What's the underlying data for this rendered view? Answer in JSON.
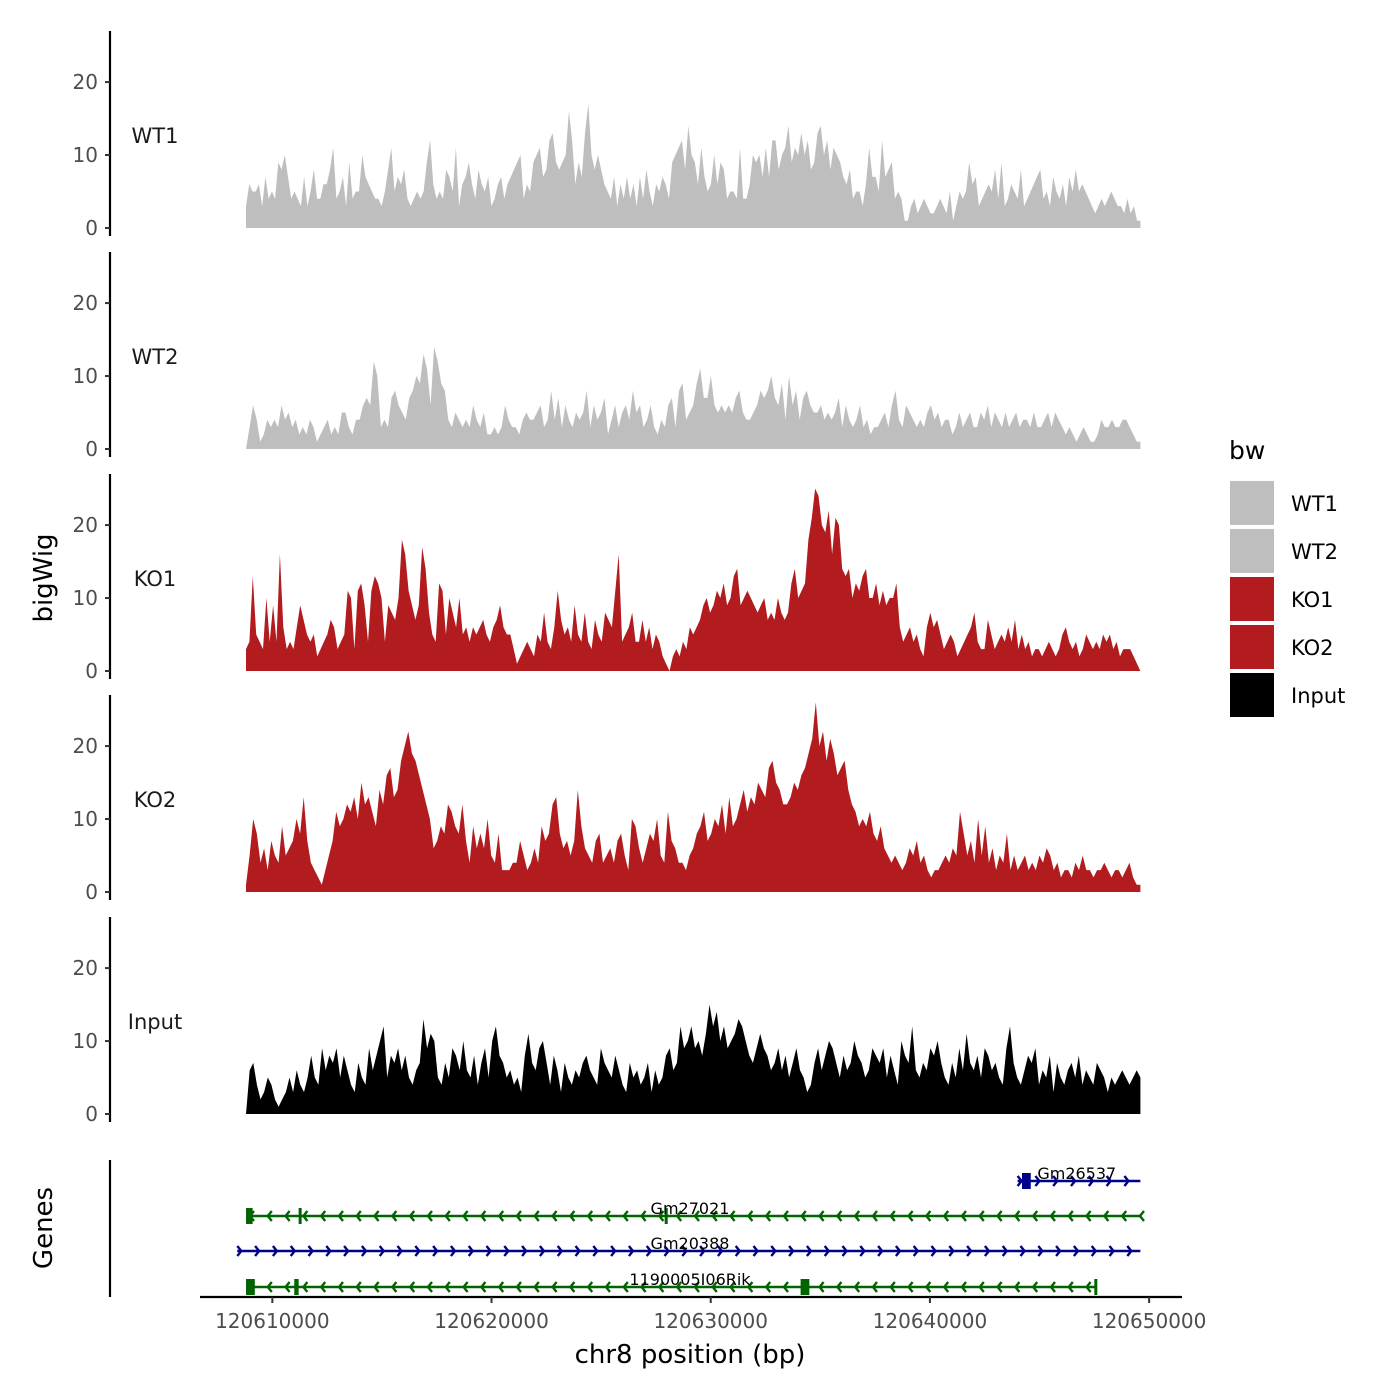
{
  "chart_data": {
    "type": "area",
    "y_axis_title": "bigWig",
    "x_axis_title": "chr8 position (bp)",
    "genes_axis_title": "Genes",
    "y_range": [
      0,
      27
    ],
    "y_ticks": [
      0,
      10,
      20
    ],
    "y_tick_labels": [
      "0",
      "10",
      "20"
    ],
    "x_range": [
      120606700,
      120651500
    ],
    "x_ticks": [
      120610000,
      120620000,
      120630000,
      120640000,
      120650000
    ],
    "x_tick_labels": [
      "120610000",
      "120620000",
      "120630000",
      "120640000",
      "120650000"
    ],
    "data_start": 120608800,
    "data_end": 120649600,
    "grid": false,
    "legend": {
      "title": "bw",
      "position": "right",
      "entries": [
        {
          "label": "WT1",
          "color": "#bebebe"
        },
        {
          "label": "WT2",
          "color": "#bebebe"
        },
        {
          "label": "KO1",
          "color": "#b21c1f"
        },
        {
          "label": "KO2",
          "color": "#b21c1f"
        },
        {
          "label": "Input",
          "color": "#000000"
        }
      ]
    },
    "tracks": [
      {
        "name": "WT1",
        "color": "#bebebe",
        "values": [
          3,
          6,
          5,
          5,
          6,
          3,
          7,
          4,
          5,
          4,
          9,
          8,
          10,
          7,
          4,
          5,
          4,
          3,
          7,
          3,
          5,
          8,
          4,
          4,
          6,
          6,
          8,
          11,
          4,
          5,
          7,
          3,
          9,
          4,
          5,
          5,
          10,
          7,
          6,
          5,
          4,
          4,
          3,
          5,
          8,
          11,
          5,
          7,
          6,
          8,
          4,
          3,
          4,
          5,
          4,
          5,
          9,
          12,
          6,
          4,
          5,
          4,
          8,
          7,
          5,
          11,
          3,
          6,
          7,
          9,
          6,
          4,
          8,
          6,
          5,
          7,
          3,
          4,
          6,
          7,
          4,
          6,
          7,
          8,
          9,
          10,
          4,
          6,
          5,
          9,
          10,
          11,
          7,
          8,
          12,
          13,
          9,
          8,
          9,
          10,
          16,
          12,
          6,
          9,
          7,
          13,
          17,
          10,
          8,
          10,
          8,
          6,
          5,
          4,
          7,
          3,
          6,
          4,
          7,
          4,
          6,
          3,
          7,
          4,
          8,
          5,
          3,
          6,
          5,
          7,
          6,
          4,
          9,
          10,
          11,
          12,
          8,
          14,
          10,
          9,
          6,
          11,
          7,
          5,
          6,
          10,
          6,
          9,
          8,
          4,
          5,
          5,
          4,
          11,
          4,
          4,
          6,
          10,
          9,
          10,
          7,
          11,
          7,
          12,
          12,
          8,
          10,
          11,
          14,
          9,
          11,
          10,
          13,
          10,
          12,
          8,
          9,
          13,
          14,
          10,
          12,
          8,
          11,
          10,
          9,
          7,
          6,
          8,
          4,
          5,
          5,
          3,
          6,
          11,
          7,
          7,
          5,
          12,
          7,
          8,
          9,
          4,
          5,
          4,
          1,
          1,
          3,
          4,
          2,
          3,
          4,
          3,
          2,
          2,
          3,
          4,
          3,
          2,
          5,
          1,
          3,
          5,
          4,
          5,
          9,
          6,
          7,
          3,
          4,
          5,
          6,
          5,
          8,
          4,
          9,
          3,
          4,
          6,
          5,
          4,
          8,
          3,
          4,
          5,
          6,
          7,
          8,
          4,
          5,
          3,
          7,
          5,
          4,
          6,
          3,
          7,
          5,
          8,
          5,
          6,
          5,
          4,
          3,
          2,
          3,
          4,
          3,
          4,
          5,
          4,
          3,
          3,
          2,
          4,
          2,
          3,
          1,
          1
        ]
      },
      {
        "name": "WT2",
        "color": "#bebebe",
        "values": [
          0,
          3,
          6,
          4,
          1,
          2,
          4,
          3,
          4,
          3,
          6,
          4,
          5,
          3,
          4,
          2,
          3,
          2,
          4,
          3,
          1,
          2,
          3,
          4,
          2,
          3,
          2,
          5,
          5,
          3,
          2,
          4,
          4,
          6,
          7,
          6,
          12,
          10,
          3,
          4,
          3,
          7,
          8,
          6,
          5,
          4,
          7,
          8,
          10,
          9,
          13,
          11,
          6,
          14,
          12,
          9,
          8,
          4,
          3,
          5,
          4,
          3,
          4,
          3,
          6,
          4,
          3,
          5,
          2,
          2,
          3,
          2,
          3,
          6,
          4,
          3,
          3,
          2,
          4,
          5,
          4,
          4,
          5,
          6,
          3,
          4,
          8,
          4,
          7,
          3,
          6,
          4,
          3,
          5,
          4,
          5,
          8,
          3,
          6,
          4,
          5,
          7,
          2,
          4,
          6,
          3,
          5,
          6,
          4,
          8,
          5,
          6,
          3,
          4,
          6,
          3,
          2,
          4,
          3,
          6,
          7,
          3,
          8,
          9,
          4,
          5,
          6,
          9,
          11,
          7,
          7,
          10,
          6,
          5,
          6,
          5,
          6,
          5,
          7,
          8,
          5,
          4,
          4,
          5,
          6,
          8,
          7,
          8,
          10,
          7,
          6,
          9,
          4,
          10,
          6,
          8,
          4,
          7,
          8,
          6,
          5,
          5,
          6,
          4,
          5,
          4,
          5,
          7,
          3,
          6,
          4,
          3,
          4,
          6,
          3,
          4,
          2,
          3,
          3,
          4,
          5,
          3,
          6,
          8,
          4,
          3,
          6,
          5,
          4,
          3,
          4,
          3,
          5,
          6,
          4,
          5,
          3,
          4,
          4,
          2,
          3,
          5,
          3,
          4,
          5,
          3,
          3,
          5,
          4,
          6,
          3,
          5,
          4,
          3,
          5,
          3,
          4,
          5,
          3,
          4,
          4,
          3,
          5,
          3,
          3,
          4,
          5,
          3,
          5,
          4,
          3,
          2,
          3,
          2,
          1,
          2,
          3,
          2,
          1,
          1,
          2,
          4,
          3,
          3,
          4,
          3,
          3,
          4,
          4,
          3,
          2,
          1,
          1
        ]
      },
      {
        "name": "KO1",
        "color": "#b21c1f",
        "values": [
          3,
          4,
          13,
          5,
          4,
          3,
          10,
          4,
          9,
          4,
          16,
          6,
          3,
          4,
          3,
          6,
          9,
          7,
          5,
          4,
          5,
          2,
          3,
          4,
          5,
          7,
          6,
          3,
          4,
          5,
          11,
          10,
          3,
          11,
          12,
          9,
          4,
          11,
          13,
          12,
          10,
          4,
          9,
          8,
          7,
          10,
          18,
          16,
          11,
          9,
          7,
          9,
          17,
          14,
          8,
          5,
          4,
          12,
          11,
          5,
          10,
          8,
          6,
          10,
          5,
          6,
          4,
          6,
          5,
          6,
          7,
          5,
          4,
          6,
          7,
          9,
          6,
          5,
          5,
          3,
          1,
          2,
          3,
          4,
          3,
          2,
          5,
          4,
          8,
          4,
          3,
          6,
          11,
          7,
          5,
          6,
          4,
          9,
          5,
          4,
          8,
          4,
          3,
          7,
          5,
          4,
          8,
          7,
          6,
          11,
          16,
          4,
          5,
          6,
          8,
          4,
          4,
          7,
          4,
          6,
          3,
          5,
          4,
          2,
          1,
          0,
          2,
          3,
          2,
          4,
          3,
          6,
          5,
          6,
          7,
          9,
          10,
          8,
          9,
          11,
          10,
          12,
          9,
          10,
          13,
          14,
          9,
          10,
          11,
          10,
          9,
          8,
          9,
          10,
          7,
          8,
          7,
          10,
          8,
          7,
          8,
          12,
          14,
          10,
          11,
          12,
          18,
          21,
          25,
          24,
          20,
          19,
          22,
          16,
          21,
          20,
          14,
          13,
          14,
          10,
          12,
          11,
          13,
          14,
          10,
          10,
          12,
          9,
          11,
          9,
          10,
          10,
          12,
          6,
          4,
          5,
          6,
          4,
          5,
          3,
          2,
          6,
          8,
          6,
          7,
          5,
          3,
          4,
          5,
          4,
          2,
          3,
          4,
          5,
          6,
          8,
          4,
          3,
          3,
          7,
          5,
          3,
          4,
          5,
          4,
          6,
          4,
          7,
          3,
          5,
          3,
          4,
          2,
          3,
          3,
          2,
          3,
          4,
          3,
          2,
          3,
          5,
          6,
          4,
          3,
          4,
          2,
          3,
          5,
          4,
          3,
          4,
          3,
          5,
          4,
          5,
          3,
          4,
          2,
          3,
          3,
          3,
          2,
          1,
          0
        ]
      },
      {
        "name": "KO2",
        "color": "#b21c1f",
        "values": [
          1,
          5,
          10,
          8,
          4,
          6,
          3,
          7,
          5,
          4,
          9,
          5,
          6,
          7,
          10,
          8,
          13,
          7,
          4,
          3,
          2,
          1,
          3,
          5,
          7,
          11,
          9,
          10,
          12,
          11,
          13,
          10,
          15,
          12,
          13,
          11,
          9,
          14,
          12,
          16,
          17,
          13,
          14,
          18,
          20,
          22,
          19,
          18,
          16,
          14,
          12,
          10,
          6,
          7,
          9,
          8,
          12,
          11,
          9,
          8,
          12,
          7,
          4,
          9,
          6,
          8,
          6,
          10,
          5,
          4,
          8,
          3,
          3,
          3,
          4,
          4,
          7,
          5,
          3,
          4,
          6,
          4,
          9,
          7,
          8,
          12,
          13,
          8,
          6,
          7,
          5,
          7,
          14,
          9,
          6,
          5,
          4,
          7,
          8,
          4,
          5,
          6,
          4,
          7,
          8,
          5,
          3,
          10,
          9,
          6,
          4,
          6,
          8,
          7,
          10,
          5,
          4,
          11,
          7,
          6,
          4,
          4,
          3,
          5,
          6,
          8,
          9,
          11,
          7,
          8,
          10,
          9,
          12,
          8,
          13,
          9,
          10,
          12,
          14,
          11,
          13,
          12,
          15,
          14,
          13,
          17,
          18,
          15,
          14,
          12,
          12,
          13,
          15,
          14,
          16,
          17,
          19,
          21,
          26,
          20,
          22,
          18,
          21,
          19,
          16,
          17,
          18,
          14,
          12,
          11,
          9,
          10,
          9,
          11,
          8,
          7,
          9,
          6,
          5,
          4,
          5,
          4,
          3,
          4,
          6,
          5,
          7,
          4,
          5,
          3,
          2,
          3,
          3,
          4,
          5,
          4,
          6,
          5,
          11,
          8,
          5,
          7,
          4,
          10,
          5,
          9,
          4,
          6,
          3,
          5,
          4,
          8,
          3,
          5,
          3,
          4,
          5,
          3,
          4,
          3,
          5,
          4,
          6,
          5,
          3,
          4,
          2,
          3,
          3,
          2,
          4,
          3,
          5,
          3,
          3,
          2,
          3,
          3,
          4,
          3,
          2,
          3,
          3,
          2,
          3,
          4,
          2,
          1,
          1
        ]
      },
      {
        "name": "Input",
        "color": "#000000",
        "values": [
          0,
          6,
          7,
          4,
          2,
          3,
          5,
          4,
          2,
          1,
          2,
          3,
          5,
          3,
          6,
          4,
          3,
          5,
          8,
          5,
          4,
          9,
          6,
          8,
          7,
          9,
          5,
          8,
          6,
          4,
          3,
          7,
          5,
          4,
          9,
          6,
          8,
          10,
          12,
          5,
          8,
          7,
          9,
          6,
          8,
          5,
          4,
          6,
          7,
          13,
          9,
          11,
          10,
          5,
          4,
          7,
          5,
          9,
          8,
          6,
          10,
          6,
          5,
          8,
          4,
          7,
          9,
          5,
          10,
          12,
          8,
          7,
          5,
          6,
          4,
          5,
          3,
          8,
          11,
          7,
          6,
          9,
          10,
          7,
          4,
          8,
          6,
          3,
          7,
          5,
          4,
          6,
          5,
          7,
          8,
          6,
          5,
          4,
          9,
          7,
          6,
          5,
          8,
          6,
          4,
          3,
          7,
          5,
          6,
          4,
          5,
          7,
          3,
          6,
          4,
          5,
          8,
          9,
          6,
          7,
          12,
          9,
          10,
          12,
          9,
          10,
          8,
          11,
          15,
          12,
          14,
          10,
          12,
          9,
          10,
          11,
          13,
          12,
          10,
          8,
          7,
          9,
          11,
          9,
          8,
          6,
          7,
          9,
          6,
          8,
          5,
          7,
          9,
          6,
          5,
          3,
          4,
          7,
          9,
          6,
          8,
          10,
          9,
          7,
          5,
          8,
          6,
          7,
          10,
          8,
          7,
          5,
          6,
          9,
          8,
          7,
          9,
          5,
          8,
          6,
          4,
          10,
          8,
          7,
          12,
          6,
          5,
          7,
          6,
          9,
          8,
          10,
          7,
          5,
          4,
          7,
          5,
          9,
          6,
          11,
          7,
          6,
          8,
          5,
          9,
          8,
          6,
          7,
          5,
          4,
          9,
          12,
          7,
          5,
          4,
          6,
          8,
          7,
          9,
          4,
          6,
          5,
          8,
          3,
          7,
          5,
          4,
          6,
          7,
          5,
          8,
          4,
          6,
          5,
          4,
          7,
          6,
          5,
          3,
          5,
          4,
          5,
          6,
          5,
          4,
          5,
          6,
          5
        ]
      }
    ],
    "genes": [
      {
        "name": "Gm26537",
        "strand": "+",
        "color": "#00008b",
        "start": 120644000,
        "end": 120649600,
        "exons": [
          [
            120644200,
            120644600
          ]
        ]
      },
      {
        "name": "Gm27021",
        "strand": "-",
        "color": "#006400",
        "start": 120608800,
        "end": 120649600,
        "exons": [
          [
            120608800,
            120609100
          ],
          [
            120611200,
            120611300
          ],
          [
            120627900,
            120628000
          ]
        ]
      },
      {
        "name": "Gm20388",
        "strand": "+",
        "color": "#00008b",
        "start": 120608400,
        "end": 120649600,
        "exons": []
      },
      {
        "name": "1190005I06Rik",
        "strand": "-",
        "color": "#006400",
        "start": 120608800,
        "end": 120647600,
        "exons": [
          [
            120608800,
            120609200
          ],
          [
            120611000,
            120611200
          ],
          [
            120634100,
            120634500
          ],
          [
            120647500,
            120647600
          ]
        ]
      }
    ]
  }
}
